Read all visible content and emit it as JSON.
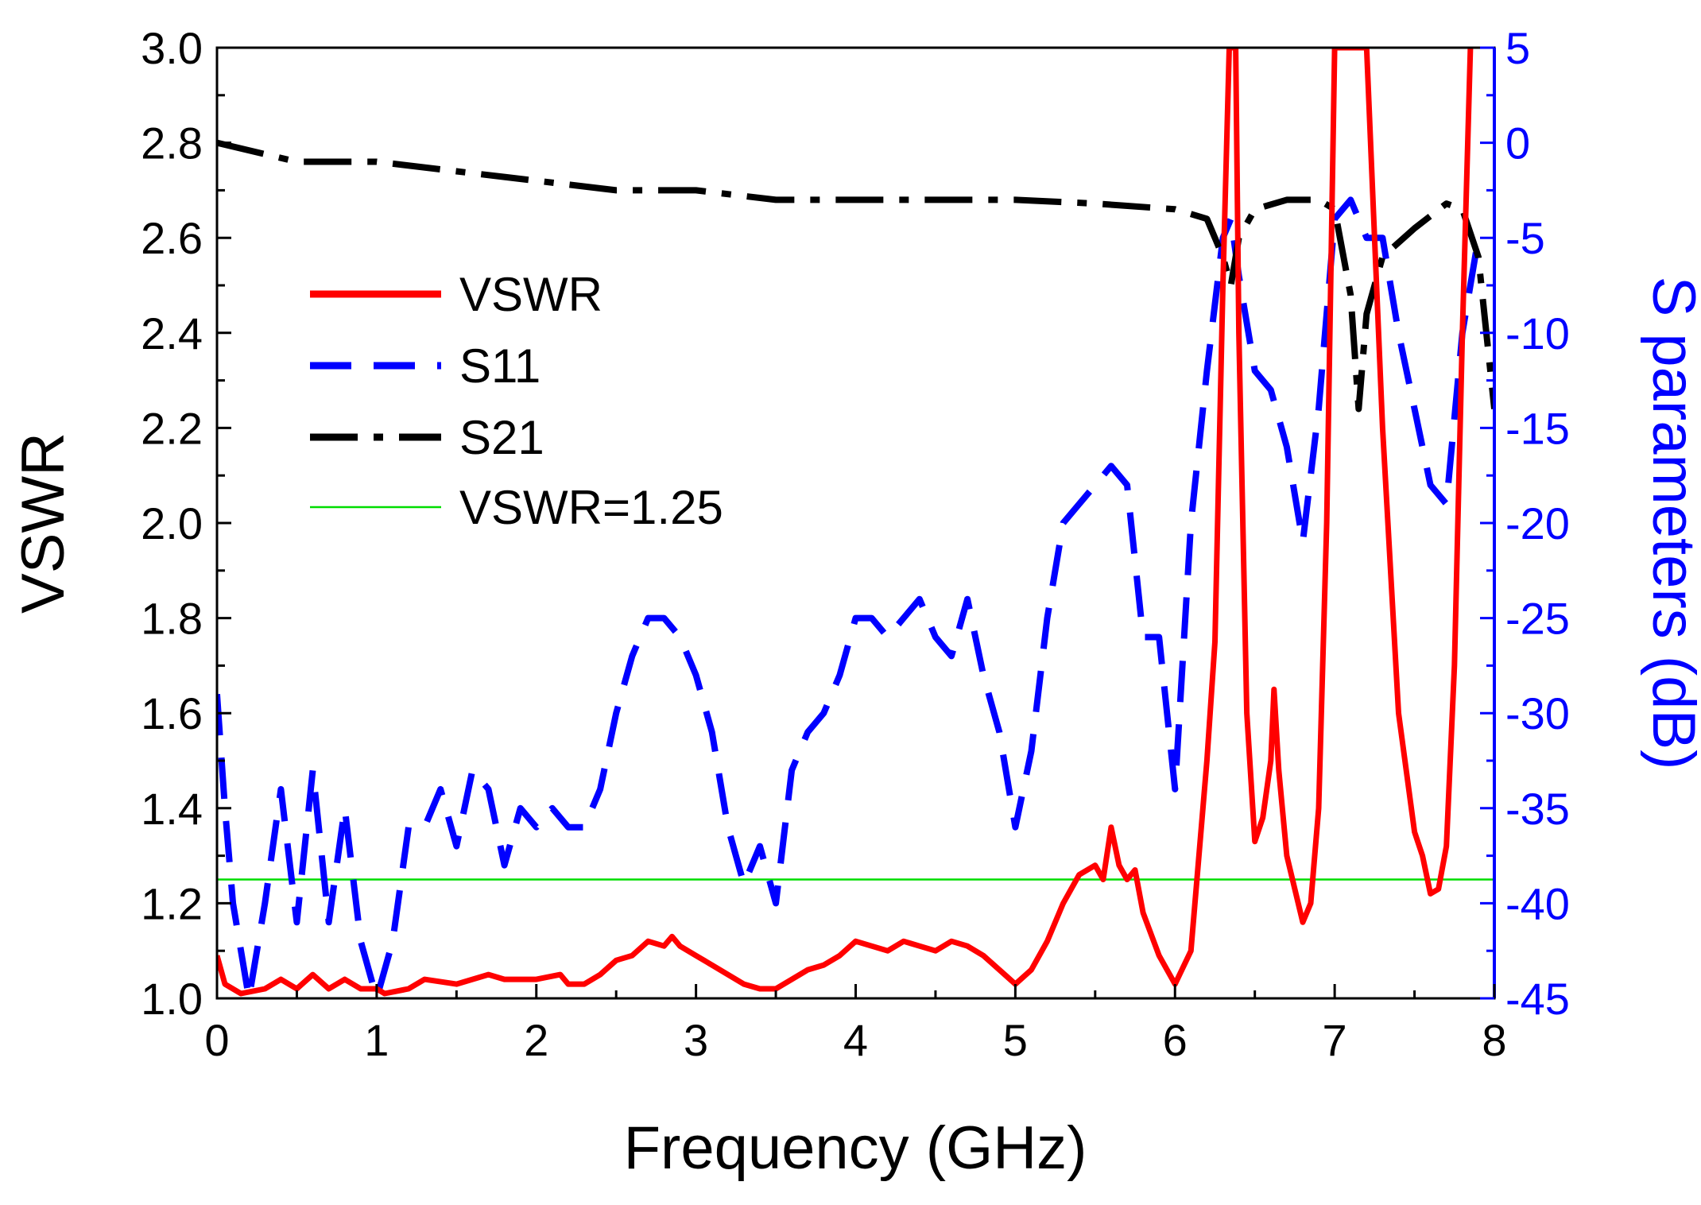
{
  "chart_data": {
    "type": "line",
    "xlabel": "Frequency (GHz)",
    "ylabel_left": "VSWR",
    "ylabel_right": "S parameters (dB)",
    "xlim": [
      0,
      8
    ],
    "ylim_left": [
      1.0,
      3.0
    ],
    "ylim_right": [
      -45,
      5
    ],
    "x_ticks": [
      "0",
      "1",
      "2",
      "3",
      "4",
      "5",
      "6",
      "7",
      "8"
    ],
    "y_left_ticks": [
      "1.0",
      "1.2",
      "1.4",
      "1.6",
      "1.8",
      "2.0",
      "2.2",
      "2.4",
      "2.6",
      "2.8",
      "3.0"
    ],
    "y_right_ticks": [
      "5",
      "0",
      "-5",
      "-10",
      "-15",
      "-20",
      "-25",
      "-30",
      "-35",
      "-40",
      "-45"
    ],
    "grid": false,
    "legend_position": "center-left",
    "colors": {
      "vswr": "#ff0000",
      "s11": "#0000ff",
      "s21": "#000000",
      "ref": "#00dd00",
      "right_axis": "#0000ff"
    },
    "series": [
      {
        "name": "VSWR",
        "key": "vswr",
        "axis": "left",
        "style": "solid",
        "points": [
          [
            0.0,
            1.09
          ],
          [
            0.05,
            1.03
          ],
          [
            0.15,
            1.01
          ],
          [
            0.3,
            1.02
          ],
          [
            0.4,
            1.04
          ],
          [
            0.5,
            1.02
          ],
          [
            0.6,
            1.05
          ],
          [
            0.7,
            1.02
          ],
          [
            0.8,
            1.04
          ],
          [
            0.9,
            1.02
          ],
          [
            1.0,
            1.02
          ],
          [
            1.05,
            1.01
          ],
          [
            1.2,
            1.02
          ],
          [
            1.3,
            1.04
          ],
          [
            1.5,
            1.03
          ],
          [
            1.6,
            1.04
          ],
          [
            1.7,
            1.05
          ],
          [
            1.8,
            1.04
          ],
          [
            2.0,
            1.04
          ],
          [
            2.15,
            1.05
          ],
          [
            2.2,
            1.03
          ],
          [
            2.3,
            1.03
          ],
          [
            2.4,
            1.05
          ],
          [
            2.5,
            1.08
          ],
          [
            2.6,
            1.09
          ],
          [
            2.7,
            1.12
          ],
          [
            2.8,
            1.11
          ],
          [
            2.85,
            1.13
          ],
          [
            2.9,
            1.11
          ],
          [
            3.0,
            1.09
          ],
          [
            3.1,
            1.07
          ],
          [
            3.2,
            1.05
          ],
          [
            3.3,
            1.03
          ],
          [
            3.4,
            1.02
          ],
          [
            3.5,
            1.02
          ],
          [
            3.6,
            1.04
          ],
          [
            3.7,
            1.06
          ],
          [
            3.8,
            1.07
          ],
          [
            3.9,
            1.09
          ],
          [
            4.0,
            1.12
          ],
          [
            4.1,
            1.11
          ],
          [
            4.2,
            1.1
          ],
          [
            4.3,
            1.12
          ],
          [
            4.4,
            1.11
          ],
          [
            4.5,
            1.1
          ],
          [
            4.6,
            1.12
          ],
          [
            4.7,
            1.11
          ],
          [
            4.8,
            1.09
          ],
          [
            4.9,
            1.06
          ],
          [
            5.0,
            1.03
          ],
          [
            5.1,
            1.06
          ],
          [
            5.2,
            1.12
          ],
          [
            5.3,
            1.2
          ],
          [
            5.4,
            1.26
          ],
          [
            5.5,
            1.28
          ],
          [
            5.55,
            1.25
          ],
          [
            5.6,
            1.36
          ],
          [
            5.65,
            1.28
          ],
          [
            5.7,
            1.25
          ],
          [
            5.75,
            1.27
          ],
          [
            5.8,
            1.18
          ],
          [
            5.9,
            1.09
          ],
          [
            6.0,
            1.03
          ],
          [
            6.1,
            1.1
          ],
          [
            6.2,
            1.5
          ],
          [
            6.25,
            1.75
          ],
          [
            6.3,
            2.5
          ],
          [
            6.34,
            3.0
          ],
          [
            6.38,
            3.0
          ],
          [
            6.4,
            2.4
          ],
          [
            6.45,
            1.6
          ],
          [
            6.5,
            1.33
          ],
          [
            6.55,
            1.38
          ],
          [
            6.6,
            1.5
          ],
          [
            6.62,
            1.65
          ],
          [
            6.65,
            1.48
          ],
          [
            6.7,
            1.3
          ],
          [
            6.8,
            1.16
          ],
          [
            6.85,
            1.2
          ],
          [
            6.9,
            1.4
          ],
          [
            6.95,
            2.0
          ],
          [
            7.0,
            3.0
          ],
          [
            7.2,
            3.0
          ],
          [
            7.25,
            2.6
          ],
          [
            7.3,
            2.2
          ],
          [
            7.4,
            1.6
          ],
          [
            7.5,
            1.35
          ],
          [
            7.55,
            1.3
          ],
          [
            7.6,
            1.22
          ],
          [
            7.65,
            1.23
          ],
          [
            7.7,
            1.32
          ],
          [
            7.75,
            1.7
          ],
          [
            7.8,
            2.4
          ],
          [
            7.85,
            3.0
          ]
        ]
      },
      {
        "name": "S11",
        "key": "s11",
        "axis": "right",
        "style": "dashed",
        "points": [
          [
            0.0,
            -29
          ],
          [
            0.05,
            -35
          ],
          [
            0.1,
            -40
          ],
          [
            0.2,
            -45
          ],
          [
            0.3,
            -40
          ],
          [
            0.4,
            -34
          ],
          [
            0.5,
            -41
          ],
          [
            0.6,
            -33
          ],
          [
            0.7,
            -41
          ],
          [
            0.8,
            -35
          ],
          [
            0.9,
            -42
          ],
          [
            1.0,
            -45
          ],
          [
            1.1,
            -42
          ],
          [
            1.2,
            -36
          ],
          [
            1.3,
            -36
          ],
          [
            1.4,
            -34
          ],
          [
            1.5,
            -37
          ],
          [
            1.6,
            -33
          ],
          [
            1.7,
            -34
          ],
          [
            1.8,
            -38
          ],
          [
            1.9,
            -35
          ],
          [
            2.0,
            -36
          ],
          [
            2.1,
            -35
          ],
          [
            2.2,
            -36
          ],
          [
            2.3,
            -36
          ],
          [
            2.4,
            -34
          ],
          [
            2.5,
            -30
          ],
          [
            2.6,
            -27
          ],
          [
            2.7,
            -25
          ],
          [
            2.8,
            -25
          ],
          [
            2.9,
            -26
          ],
          [
            3.0,
            -28
          ],
          [
            3.1,
            -31
          ],
          [
            3.2,
            -36
          ],
          [
            3.3,
            -39
          ],
          [
            3.4,
            -37
          ],
          [
            3.5,
            -40
          ],
          [
            3.6,
            -33
          ],
          [
            3.7,
            -31
          ],
          [
            3.8,
            -30
          ],
          [
            3.9,
            -28
          ],
          [
            4.0,
            -25
          ],
          [
            4.1,
            -25
          ],
          [
            4.2,
            -26
          ],
          [
            4.3,
            -25
          ],
          [
            4.4,
            -24
          ],
          [
            4.5,
            -26
          ],
          [
            4.6,
            -27
          ],
          [
            4.7,
            -24
          ],
          [
            4.8,
            -28
          ],
          [
            4.9,
            -31
          ],
          [
            5.0,
            -36
          ],
          [
            5.1,
            -32
          ],
          [
            5.2,
            -25
          ],
          [
            5.3,
            -20
          ],
          [
            5.4,
            -19
          ],
          [
            5.5,
            -18
          ],
          [
            5.6,
            -17
          ],
          [
            5.7,
            -18
          ],
          [
            5.8,
            -26
          ],
          [
            5.9,
            -26
          ],
          [
            6.0,
            -34
          ],
          [
            6.1,
            -20
          ],
          [
            6.2,
            -12
          ],
          [
            6.3,
            -5
          ],
          [
            6.35,
            -4
          ],
          [
            6.4,
            -7
          ],
          [
            6.5,
            -12
          ],
          [
            6.6,
            -13
          ],
          [
            6.7,
            -16
          ],
          [
            6.8,
            -21
          ],
          [
            6.9,
            -14
          ],
          [
            7.0,
            -4
          ],
          [
            7.1,
            -3
          ],
          [
            7.2,
            -5
          ],
          [
            7.3,
            -5
          ],
          [
            7.4,
            -10
          ],
          [
            7.5,
            -14
          ],
          [
            7.6,
            -18
          ],
          [
            7.7,
            -19
          ],
          [
            7.8,
            -10
          ],
          [
            7.9,
            -5
          ]
        ]
      },
      {
        "name": "S21",
        "key": "s21",
        "axis": "right",
        "style": "dashdot",
        "points": [
          [
            0.0,
            0
          ],
          [
            0.5,
            -1
          ],
          [
            1.0,
            -1
          ],
          [
            1.5,
            -1.5
          ],
          [
            2.0,
            -2
          ],
          [
            2.5,
            -2.5
          ],
          [
            3.0,
            -2.5
          ],
          [
            3.5,
            -3
          ],
          [
            4.0,
            -3
          ],
          [
            4.5,
            -3
          ],
          [
            5.0,
            -3
          ],
          [
            5.5,
            -3.2
          ],
          [
            6.0,
            -3.5
          ],
          [
            6.2,
            -4
          ],
          [
            6.3,
            -6
          ],
          [
            6.35,
            -7.5
          ],
          [
            6.4,
            -5
          ],
          [
            6.5,
            -3.5
          ],
          [
            6.7,
            -3
          ],
          [
            6.9,
            -3
          ],
          [
            7.0,
            -3.5
          ],
          [
            7.1,
            -8
          ],
          [
            7.15,
            -14
          ],
          [
            7.2,
            -9
          ],
          [
            7.3,
            -6
          ],
          [
            7.5,
            -4.5
          ],
          [
            7.7,
            -3.2
          ],
          [
            7.8,
            -3.5
          ],
          [
            7.9,
            -6
          ],
          [
            8.0,
            -14
          ]
        ]
      },
      {
        "name": "VSWR=1.25",
        "key": "ref",
        "axis": "left",
        "style": "thin",
        "points": [
          [
            0.0,
            1.25
          ],
          [
            8.0,
            1.25
          ]
        ]
      }
    ]
  }
}
